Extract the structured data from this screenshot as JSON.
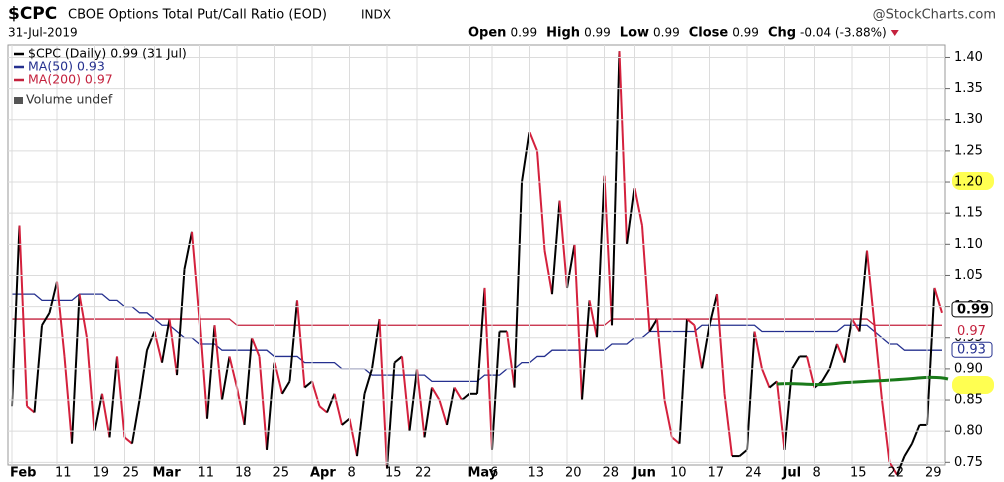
{
  "chart_data": {
    "type": "line",
    "symbol": "$CPC",
    "title": "CBOE Options Total Put/Call Ratio (EOD)",
    "exchange": "INDX",
    "source": "@StockCharts.com",
    "date": "31-Jul-2019",
    "quote": [
      {
        "label": "Open",
        "value": 0.99
      },
      {
        "label": "High",
        "value": 0.99
      },
      {
        "label": "Low",
        "value": 0.99
      },
      {
        "label": "Close",
        "value": 0.99
      }
    ],
    "chg_label": "Chg",
    "chg": "-0.04 (-3.88%)",
    "volume_legend": "Volume undef",
    "categories": [
      "Feb",
      null,
      null,
      null,
      null,
      null,
      "11",
      null,
      null,
      null,
      null,
      "19",
      null,
      null,
      null,
      "25",
      null,
      null,
      null,
      "Mar",
      null,
      null,
      null,
      null,
      null,
      "11",
      null,
      null,
      null,
      null,
      "18",
      null,
      null,
      null,
      null,
      "25",
      null,
      null,
      null,
      null,
      "Apr",
      null,
      null,
      null,
      null,
      "8",
      null,
      null,
      null,
      null,
      "15",
      null,
      null,
      null,
      "22",
      null,
      null,
      null,
      null,
      null,
      null,
      "May",
      null,
      null,
      "6",
      null,
      null,
      null,
      null,
      "13",
      null,
      null,
      null,
      null,
      "20",
      null,
      null,
      null,
      null,
      "28",
      null,
      null,
      null,
      "Jun",
      null,
      null,
      null,
      null,
      "10",
      null,
      null,
      null,
      null,
      "17",
      null,
      null,
      null,
      null,
      "24",
      null,
      null,
      null,
      null,
      "Jul",
      null,
      null,
      null,
      "8",
      null,
      null,
      null,
      null,
      "15",
      null,
      null,
      null,
      null,
      "22",
      null,
      null,
      null,
      null,
      "29",
      null,
      null
    ],
    "series": [
      {
        "name": "$CPC (Daily) 0.99 (31 Jul)",
        "up_color": "#000000",
        "down_color": "#d4213d",
        "tag": 0.99,
        "values": [
          0.84,
          1.13,
          0.84,
          0.83,
          0.97,
          0.99,
          1.04,
          0.92,
          0.78,
          1.02,
          0.95,
          0.8,
          0.86,
          0.79,
          0.92,
          0.79,
          0.78,
          0.85,
          0.93,
          0.96,
          0.91,
          0.98,
          0.89,
          1.06,
          1.12,
          0.98,
          0.82,
          0.97,
          0.85,
          0.92,
          0.87,
          0.81,
          0.95,
          0.92,
          0.77,
          0.91,
          0.86,
          0.88,
          1.01,
          0.87,
          0.88,
          0.84,
          0.83,
          0.86,
          0.81,
          0.82,
          0.76,
          0.86,
          0.9,
          0.98,
          0.74,
          0.91,
          0.92,
          0.8,
          0.9,
          0.79,
          0.87,
          0.85,
          0.81,
          0.87,
          0.85,
          0.86,
          0.86,
          1.03,
          0.77,
          0.96,
          0.96,
          0.87,
          1.2,
          1.28,
          1.25,
          1.09,
          1.02,
          1.17,
          1.03,
          1.1,
          0.85,
          1.01,
          0.95,
          1.21,
          0.97,
          1.41,
          1.1,
          1.19,
          1.13,
          0.96,
          0.98,
          0.85,
          0.79,
          0.78,
          0.98,
          0.97,
          0.9,
          0.97,
          1.02,
          0.86,
          0.76,
          0.76,
          0.77,
          0.96,
          0.9,
          0.87,
          0.88,
          0.77,
          0.9,
          0.92,
          0.92,
          0.87,
          0.88,
          0.9,
          0.94,
          0.91,
          0.98,
          0.96,
          1.09,
          0.97,
          0.85,
          0.75,
          0.73,
          0.76,
          0.78,
          0.81,
          0.81,
          1.03,
          0.99
        ]
      },
      {
        "name": "MA(50) 0.93",
        "color": "#25308f",
        "tag": 0.93,
        "values": [
          1.02,
          1.02,
          1.02,
          1.02,
          1.01,
          1.01,
          1.01,
          1.01,
          1.01,
          1.02,
          1.02,
          1.02,
          1.02,
          1.01,
          1.01,
          1.0,
          1.0,
          0.99,
          0.99,
          0.98,
          0.97,
          0.97,
          0.96,
          0.95,
          0.95,
          0.94,
          0.94,
          0.94,
          0.93,
          0.93,
          0.93,
          0.93,
          0.93,
          0.93,
          0.93,
          0.92,
          0.92,
          0.92,
          0.92,
          0.91,
          0.91,
          0.91,
          0.91,
          0.91,
          0.9,
          0.9,
          0.9,
          0.9,
          0.89,
          0.89,
          0.89,
          0.89,
          0.89,
          0.89,
          0.89,
          0.89,
          0.88,
          0.88,
          0.88,
          0.88,
          0.88,
          0.88,
          0.88,
          0.89,
          0.89,
          0.89,
          0.9,
          0.9,
          0.91,
          0.91,
          0.92,
          0.92,
          0.93,
          0.93,
          0.93,
          0.93,
          0.93,
          0.93,
          0.93,
          0.93,
          0.94,
          0.94,
          0.94,
          0.95,
          0.95,
          0.96,
          0.96,
          0.96,
          0.96,
          0.96,
          0.96,
          0.96,
          0.97,
          0.97,
          0.97,
          0.97,
          0.97,
          0.97,
          0.97,
          0.97,
          0.96,
          0.96,
          0.96,
          0.96,
          0.96,
          0.96,
          0.96,
          0.96,
          0.96,
          0.96,
          0.96,
          0.97,
          0.97,
          0.97,
          0.97,
          0.96,
          0.95,
          0.94,
          0.94,
          0.93,
          0.93,
          0.93,
          0.93,
          0.93,
          0.93
        ]
      },
      {
        "name": "MA(200) 0.97",
        "color": "#c4213d",
        "tag": 0.97,
        "values": [
          0.98,
          0.98,
          0.98,
          0.98,
          0.98,
          0.98,
          0.98,
          0.98,
          0.98,
          0.98,
          0.98,
          0.98,
          0.98,
          0.98,
          0.98,
          0.98,
          0.98,
          0.98,
          0.98,
          0.98,
          0.98,
          0.98,
          0.98,
          0.98,
          0.98,
          0.98,
          0.98,
          0.98,
          0.98,
          0.98,
          0.97,
          0.97,
          0.97,
          0.97,
          0.97,
          0.97,
          0.97,
          0.97,
          0.97,
          0.97,
          0.97,
          0.97,
          0.97,
          0.97,
          0.97,
          0.97,
          0.97,
          0.97,
          0.97,
          0.97,
          0.97,
          0.97,
          0.97,
          0.97,
          0.97,
          0.97,
          0.97,
          0.97,
          0.97,
          0.97,
          0.97,
          0.97,
          0.97,
          0.97,
          0.97,
          0.97,
          0.97,
          0.97,
          0.97,
          0.97,
          0.97,
          0.97,
          0.97,
          0.97,
          0.97,
          0.97,
          0.97,
          0.97,
          0.97,
          0.97,
          0.98,
          0.98,
          0.98,
          0.98,
          0.98,
          0.98,
          0.98,
          0.98,
          0.98,
          0.98,
          0.98,
          0.98,
          0.98,
          0.98,
          0.98,
          0.98,
          0.98,
          0.98,
          0.98,
          0.98,
          0.98,
          0.98,
          0.98,
          0.98,
          0.98,
          0.98,
          0.98,
          0.98,
          0.98,
          0.98,
          0.98,
          0.98,
          0.98,
          0.98,
          0.98,
          0.97,
          0.97,
          0.97,
          0.97,
          0.97,
          0.97,
          0.97,
          0.97,
          0.97,
          0.97
        ]
      }
    ],
    "ylim": [
      0.72,
      1.42
    ],
    "yticks": [
      0.75,
      {
        "value": 0.8,
        "label": "0.80"
      },
      0.85,
      {
        "value": 0.9,
        "label": "0.90"
      },
      0.95,
      {
        "value": 1,
        "label": "1.00"
      },
      1.05,
      {
        "value": 1.1,
        "label": "1.10"
      },
      1.15,
      {
        "value": 1.2,
        "label": "1.20"
      },
      1.25,
      {
        "value": 1.3,
        "label": "1.30"
      },
      1.35,
      {
        "value": 1.4,
        "label": "1.40"
      }
    ],
    "grid": true
  }
}
